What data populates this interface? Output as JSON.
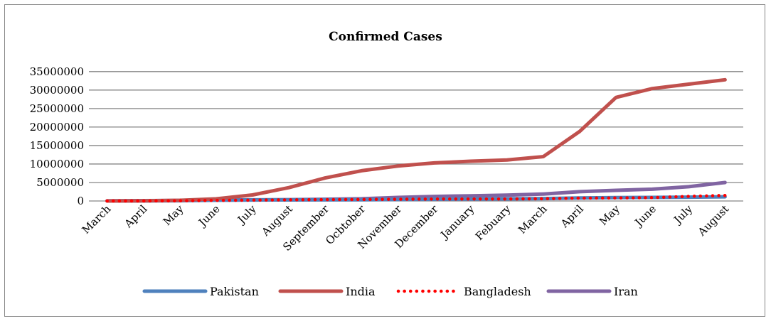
{
  "chart_data": {
    "type": "line",
    "title": "Confirmed Cases",
    "xlabel": "",
    "ylabel": "",
    "ylim": [
      0,
      35000000
    ],
    "yticks": [
      0,
      5000000,
      10000000,
      15000000,
      20000000,
      25000000,
      30000000,
      35000000
    ],
    "ytick_labels": [
      "0",
      "5000000",
      "10000000",
      "15000000",
      "20000000",
      "25000000",
      "30000000",
      "35000000"
    ],
    "grid": true,
    "legend_position": "bottom",
    "categories": [
      "March",
      "April",
      "May",
      "June",
      "July",
      "August",
      "September",
      "Ocbtober",
      "November",
      "December",
      "January",
      "Febuary",
      "March",
      "April",
      "May",
      "June",
      "July",
      "August"
    ],
    "series": [
      {
        "name": "Pakistan",
        "color": "#4f81bd",
        "style": "solid",
        "values": [
          2000,
          16000,
          72000,
          213000,
          278000,
          296000,
          312000,
          336000,
          398000,
          480000,
          546000,
          579000,
          660000,
          820000,
          925000,
          956000,
          1040000,
          1140000
        ]
      },
      {
        "name": "India",
        "color": "#c0504d",
        "style": "solid",
        "values": [
          1400,
          35000,
          190000,
          585000,
          1640000,
          3620000,
          6230000,
          8180000,
          9460000,
          10290000,
          10750000,
          11100000,
          12000000,
          18800000,
          28000000,
          30400000,
          31600000,
          32800000
        ]
      },
      {
        "name": "Bangladesh",
        "color": "#ff0000",
        "style": "dotted",
        "values": [
          50,
          7700,
          47000,
          145000,
          237000,
          312000,
          364000,
          405000,
          462000,
          514000,
          535000,
          546000,
          611000,
          760000,
          805000,
          900000,
          1240000,
          1500000
        ]
      },
      {
        "name": "Iran",
        "color": "#8064a2",
        "style": "solid",
        "values": [
          44600,
          94600,
          151000,
          227000,
          304000,
          372000,
          454000,
          588000,
          962000,
          1220000,
          1410000,
          1600000,
          1880000,
          2510000,
          2890000,
          3180000,
          3870000,
          5000000
        ]
      }
    ]
  }
}
